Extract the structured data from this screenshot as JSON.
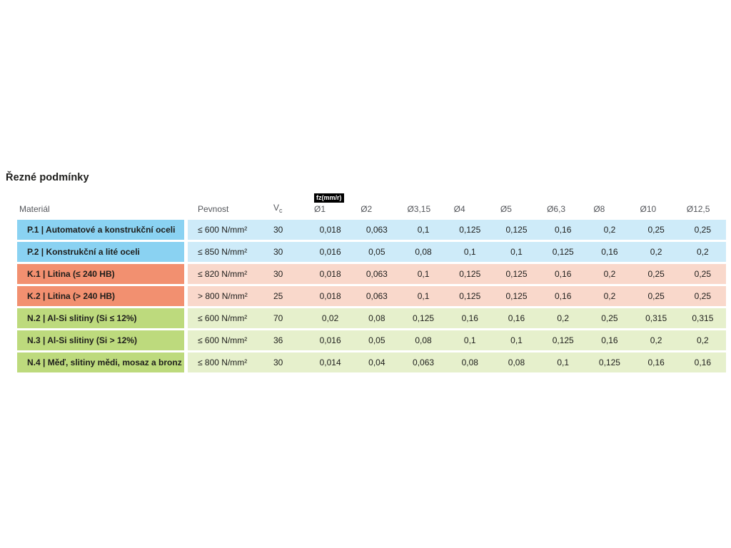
{
  "page": {
    "title": "Řezné podmínky"
  },
  "table": {
    "headers": {
      "material": "Materiál",
      "strength": "Pevnost",
      "vc": "V",
      "vc_sub": "c",
      "fz_badge": "fz(mm/r)",
      "diameters": [
        "Ø1",
        "Ø2",
        "Ø3,15",
        "Ø4",
        "Ø5",
        "Ø6,3",
        "Ø8",
        "Ø10",
        "Ø12,5"
      ]
    },
    "groups": [
      {
        "name": "steels",
        "color_strong": "#8AD2F2",
        "color_light": "#CEEBF9",
        "rows": [
          {
            "material": "P.1 | Automatové a konstrukční oceli",
            "strength": "≤ 600 N/mm²",
            "vc": "30",
            "values": [
              "0,018",
              "0,063",
              "0,1",
              "0,125",
              "0,125",
              "0,16",
              "0,2",
              "0,25",
              "0,25"
            ]
          },
          {
            "material": "P.2 | Konstrukční a lité oceli",
            "strength": "≤ 850 N/mm²",
            "vc": "30",
            "values": [
              "0,016",
              "0,05",
              "0,08",
              "0,1",
              "0,1",
              "0,125",
              "0,16",
              "0,2",
              "0,2"
            ]
          }
        ]
      },
      {
        "name": "cast-iron",
        "color_strong": "#F29070",
        "color_light": "#F9D8CB",
        "rows": [
          {
            "material": "K.1 | Litina (≤ 240 HB)",
            "strength": "≤ 820 N/mm²",
            "vc": "30",
            "values": [
              "0,018",
              "0,063",
              "0,1",
              "0,125",
              "0,125",
              "0,16",
              "0,2",
              "0,25",
              "0,25"
            ]
          },
          {
            "material": "K.2 | Litina (> 240 HB)",
            "strength": "> 800 N/mm²",
            "vc": "25",
            "values": [
              "0,018",
              "0,063",
              "0,1",
              "0,125",
              "0,125",
              "0,16",
              "0,2",
              "0,25",
              "0,25"
            ]
          }
        ]
      },
      {
        "name": "non-ferrous",
        "color_strong": "#BDDA7D",
        "color_light": "#E6F0CC",
        "rows": [
          {
            "material": "N.2 | Al-Si slitiny (Si ≤ 12%)",
            "strength": "≤ 600 N/mm²",
            "vc": "70",
            "values": [
              "0,02",
              "0,08",
              "0,125",
              "0,16",
              "0,16",
              "0,2",
              "0,25",
              "0,315",
              "0,315"
            ]
          },
          {
            "material": "N.3 | Al-Si slitiny (Si > 12%)",
            "strength": "≤ 600 N/mm²",
            "vc": "36",
            "values": [
              "0,016",
              "0,05",
              "0,08",
              "0,1",
              "0,1",
              "0,125",
              "0,16",
              "0,2",
              "0,2"
            ]
          },
          {
            "material": "N.4 | Měď, slitiny mědi, mosaz a bronz",
            "strength": "≤ 800 N/mm²",
            "vc": "30",
            "values": [
              "0,014",
              "0,04",
              "0,063",
              "0,08",
              "0,08",
              "0,1",
              "0,125",
              "0,16",
              "0,16"
            ]
          }
        ]
      }
    ]
  }
}
